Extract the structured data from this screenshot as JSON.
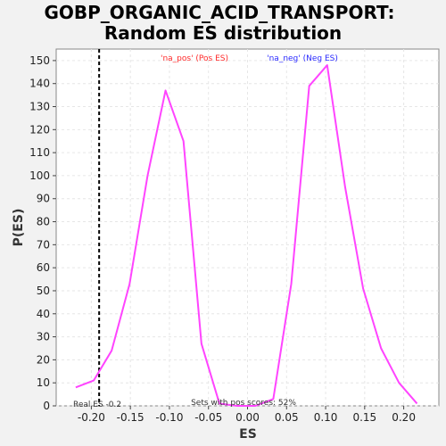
{
  "chart_data": {
    "type": "line",
    "title_line1": "GOBP_ORGANIC_ACID_TRANSPORT:",
    "title_line2": "Random ES distribution",
    "xlabel": "ES",
    "ylabel": "P(ES)",
    "xlim": [
      -0.245,
      0.245
    ],
    "ylim": [
      0,
      155
    ],
    "xticks": [
      -0.2,
      -0.15,
      -0.1,
      -0.05,
      0.0,
      0.05,
      0.1,
      0.15,
      0.2
    ],
    "xtick_labels": [
      "-0.20",
      "-0.15",
      "-0.10",
      "-0.05",
      "0.00",
      "0.05",
      "0.10",
      "0.15",
      "0.20"
    ],
    "yticks": [
      0,
      10,
      20,
      30,
      40,
      50,
      60,
      70,
      80,
      90,
      100,
      110,
      120,
      130,
      140,
      150
    ],
    "ytick_labels": [
      "0",
      "10",
      "20",
      "30",
      "40",
      "50",
      "60",
      "70",
      "80",
      "90",
      "100",
      "110",
      "120",
      "130",
      "140",
      "150"
    ],
    "grid": true,
    "series": [
      {
        "color": "#ff44ff",
        "x": [
          -0.22,
          -0.197,
          -0.174,
          -0.151,
          -0.128,
          -0.105,
          -0.082,
          -0.059,
          -0.036,
          -0.013,
          0.01,
          0.033,
          0.056,
          0.079,
          0.102,
          0.125,
          0.148,
          0.171,
          0.194,
          0.217
        ],
        "y": [
          8,
          11,
          24,
          53,
          100,
          137,
          115,
          27,
          1,
          0,
          0,
          3,
          53,
          139,
          148,
          95,
          51,
          25,
          10,
          1
        ]
      }
    ],
    "real_es": -0.19,
    "real_es_color": "#000000",
    "annotations": {
      "na_pos": "'na_pos' (Pos ES)",
      "na_pos_color": "#ff2a2a",
      "na_neg": "'na_neg' (Neg ES)",
      "na_neg_color": "#2a2aff",
      "real_es": "Real ES -0.2",
      "pos_scores": "Sets with pos scores: 52%"
    }
  }
}
